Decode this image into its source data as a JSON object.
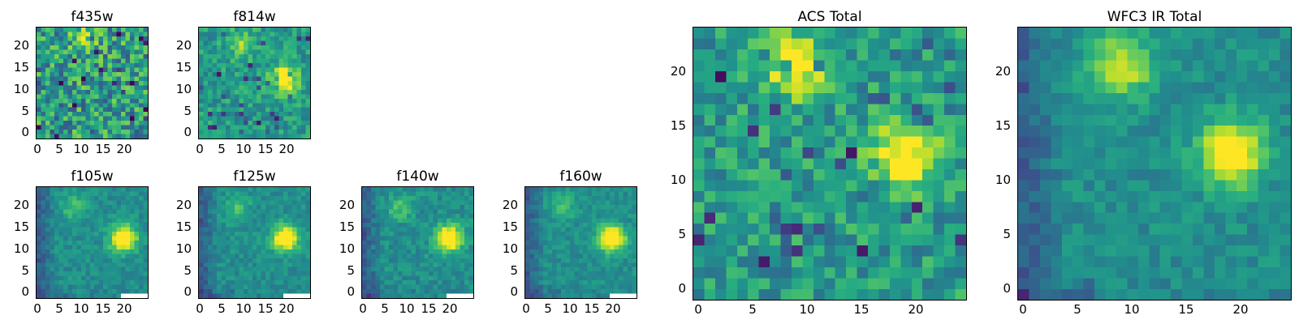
{
  "chart_data": [
    {
      "type": "heatmap",
      "title": "f435w",
      "grid_size": [
        25,
        25
      ],
      "xticks": [
        "0",
        "5",
        "10",
        "15",
        "20"
      ],
      "yticks": [
        "0",
        "5",
        "10",
        "15",
        "20"
      ],
      "colormap": "viridis",
      "pattern": "noise",
      "bright_spots": [
        {
          "x": 10,
          "y": 22,
          "strength": 0.3
        }
      ],
      "noise": 0.55,
      "white_corner": false
    },
    {
      "type": "heatmap",
      "title": "f814w",
      "grid_size": [
        25,
        25
      ],
      "xticks": [
        "0",
        "5",
        "10",
        "15",
        "20"
      ],
      "yticks": [
        "0",
        "5",
        "10",
        "15",
        "20"
      ],
      "colormap": "viridis",
      "pattern": "noise",
      "bright_spots": [
        {
          "x": 19,
          "y": 13,
          "strength": 0.65
        },
        {
          "x": 9,
          "y": 21,
          "strength": 0.25
        }
      ],
      "noise": 0.3,
      "white_corner": false
    },
    {
      "type": "heatmap",
      "title": "f105w",
      "grid_size": [
        25,
        25
      ],
      "xticks": [
        "0",
        "5",
        "10",
        "15",
        "20"
      ],
      "yticks": [
        "0",
        "5",
        "10",
        "15",
        "20"
      ],
      "colormap": "viridis",
      "pattern": "smooth",
      "bright_spots": [
        {
          "x": 19,
          "y": 13,
          "strength": 0.7
        },
        {
          "x": 8,
          "y": 20,
          "strength": 0.2
        }
      ],
      "noise": 0.18,
      "white_corner": true
    },
    {
      "type": "heatmap",
      "title": "f125w",
      "grid_size": [
        25,
        25
      ],
      "xticks": [
        "0",
        "5",
        "10",
        "15",
        "20"
      ],
      "yticks": [
        "0",
        "5",
        "10",
        "15",
        "20"
      ],
      "colormap": "viridis",
      "pattern": "smooth",
      "bright_spots": [
        {
          "x": 19,
          "y": 13,
          "strength": 0.7
        },
        {
          "x": 8,
          "y": 20,
          "strength": 0.22
        }
      ],
      "noise": 0.18,
      "white_corner": true
    },
    {
      "type": "heatmap",
      "title": "f140w",
      "grid_size": [
        25,
        25
      ],
      "xticks": [
        "0",
        "5",
        "10",
        "15",
        "20"
      ],
      "yticks": [
        "0",
        "5",
        "10",
        "15",
        "20"
      ],
      "colormap": "viridis",
      "pattern": "smooth",
      "bright_spots": [
        {
          "x": 19,
          "y": 13,
          "strength": 0.75
        },
        {
          "x": 8,
          "y": 20,
          "strength": 0.2
        }
      ],
      "noise": 0.2,
      "white_corner": true
    },
    {
      "type": "heatmap",
      "title": "f160w",
      "grid_size": [
        25,
        25
      ],
      "xticks": [
        "0",
        "5",
        "10",
        "15",
        "20"
      ],
      "yticks": [
        "0",
        "5",
        "10",
        "15",
        "20"
      ],
      "colormap": "viridis",
      "pattern": "smooth",
      "bright_spots": [
        {
          "x": 19,
          "y": 13,
          "strength": 0.75
        },
        {
          "x": 8,
          "y": 20,
          "strength": 0.2
        }
      ],
      "noise": 0.16,
      "white_corner": true
    },
    {
      "type": "heatmap",
      "title": "ACS Total",
      "grid_size": [
        25,
        25
      ],
      "xticks": [
        "0",
        "5",
        "10",
        "15",
        "20"
      ],
      "yticks": [
        "0",
        "5",
        "10",
        "15",
        "20"
      ],
      "colormap": "viridis",
      "pattern": "noise",
      "bright_spots": [
        {
          "x": 19,
          "y": 13,
          "strength": 0.65
        },
        {
          "x": 9,
          "y": 21,
          "strength": 0.5
        }
      ],
      "noise": 0.35,
      "white_corner": false
    },
    {
      "type": "heatmap",
      "title": "WFC3 IR Total",
      "grid_size": [
        25,
        25
      ],
      "xticks": [
        "0",
        "5",
        "10",
        "15",
        "20"
      ],
      "yticks": [
        "0",
        "5",
        "10",
        "15",
        "20"
      ],
      "colormap": "viridis",
      "pattern": "smooth",
      "bright_spots": [
        {
          "x": 19,
          "y": 13,
          "strength": 0.7
        },
        {
          "x": 9,
          "y": 21,
          "strength": 0.45
        }
      ],
      "noise": 0.18,
      "white_corner": false
    }
  ]
}
